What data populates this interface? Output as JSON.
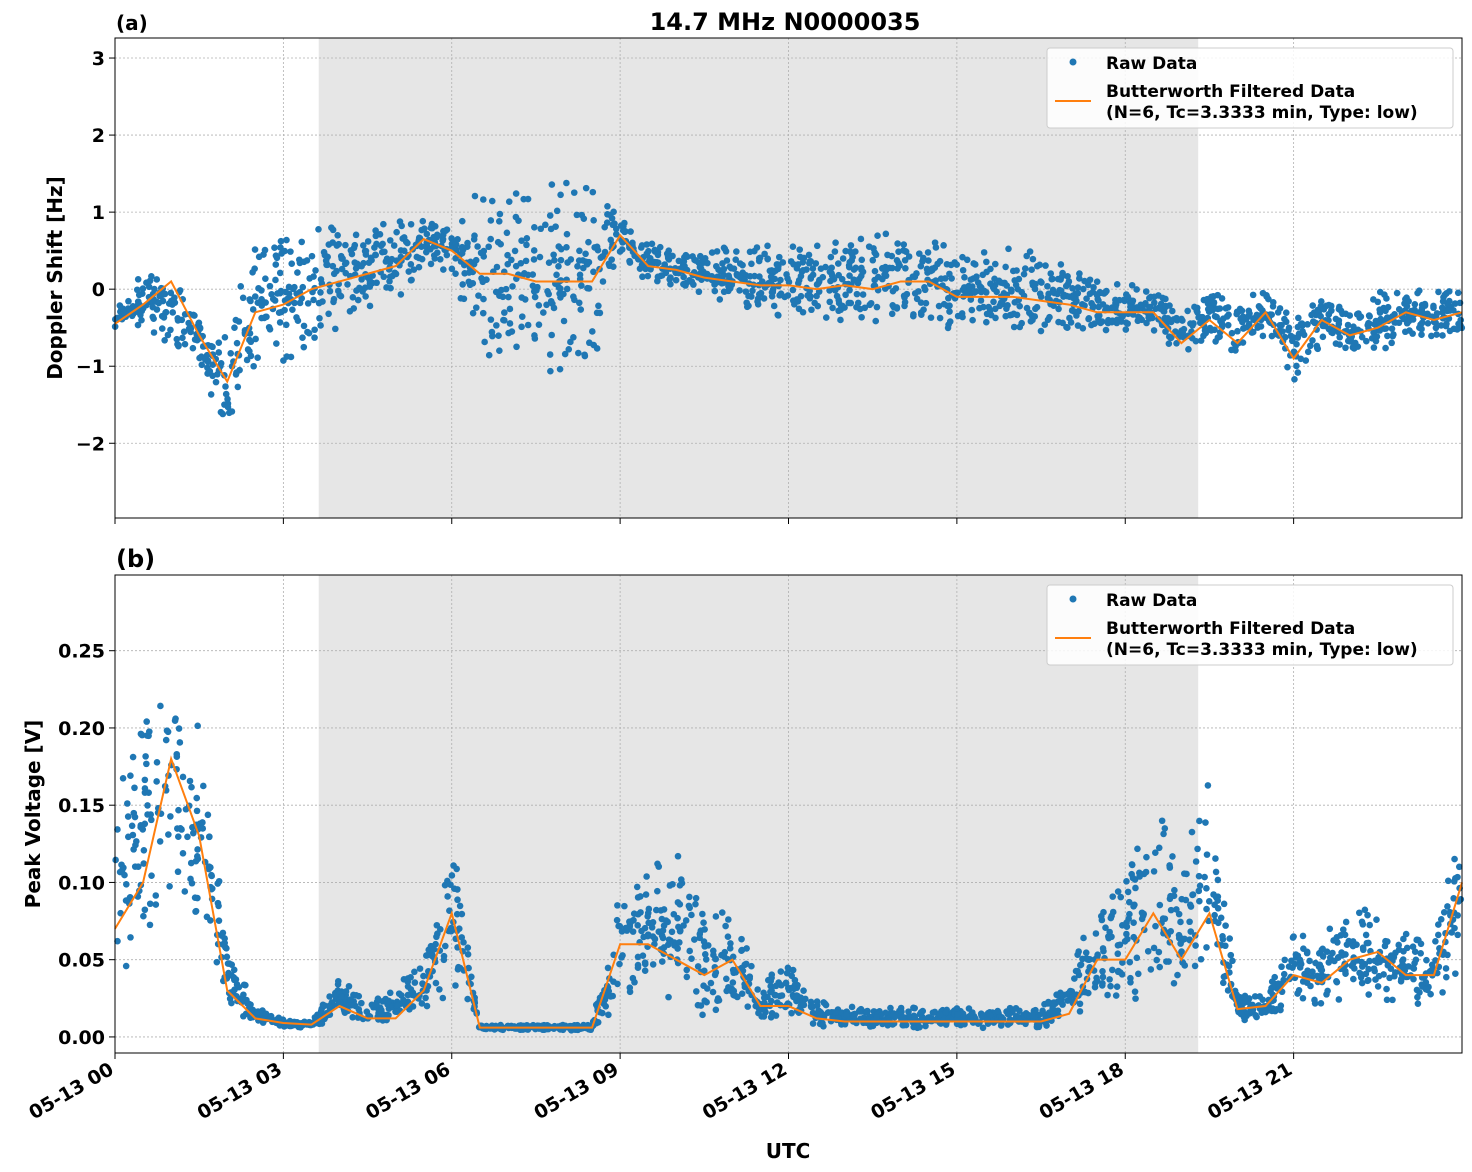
{
  "chart_data": [
    {
      "type": "scatter+line",
      "panel_label": "(a)",
      "title": "14.7 MHz N0000035",
      "xlabel": "",
      "ylabel": "Doppler Shift [Hz]",
      "xlim_hours_utc": [
        0,
        24
      ],
      "ylim": [
        -2.97,
        3.26
      ],
      "yticks": [
        -2,
        -1,
        0,
        1,
        2,
        3
      ],
      "ytick_labels": [
        "−2",
        "−1",
        "0",
        "1",
        "2",
        "3"
      ],
      "grid": true,
      "shaded_interval_hours_utc": [
        3.63,
        19.3
      ],
      "legend_placement": "top-right",
      "legend": [
        "Raw Data",
        "Butterworth Filtered Data\n(N=6, Tc=3.3333 min, Type: low)"
      ],
      "legend_line1": "Butterworth Filtered Data",
      "legend_line2": "(N=6, Tc=3.3333 min, Type: low)",
      "x_hours_utc": [
        0,
        0.5,
        1,
        1.5,
        2,
        2.5,
        3,
        3.5,
        4,
        4.5,
        5,
        5.5,
        6,
        6.5,
        7,
        7.5,
        8,
        8.5,
        9,
        9.5,
        10,
        10.5,
        11,
        11.5,
        12,
        12.5,
        13,
        13.5,
        14,
        14.5,
        15,
        15.5,
        16,
        16.5,
        17,
        17.5,
        18,
        18.5,
        19,
        19.5,
        20,
        20.5,
        21,
        21.5,
        22,
        22.5,
        23,
        23.5,
        24
      ],
      "series": [
        {
          "name": "Butterworth Filtered Data",
          "values": [
            -0.45,
            -0.2,
            0.1,
            -0.6,
            -1.2,
            -0.3,
            -0.2,
            0.0,
            0.1,
            0.2,
            0.3,
            0.65,
            0.5,
            0.2,
            0.2,
            0.1,
            0.1,
            0.1,
            0.7,
            0.3,
            0.25,
            0.15,
            0.1,
            0.05,
            0.05,
            0.0,
            0.05,
            0.0,
            0.1,
            0.1,
            -0.1,
            -0.1,
            -0.1,
            -0.15,
            -0.2,
            -0.3,
            -0.3,
            -0.3,
            -0.7,
            -0.4,
            -0.7,
            -0.3,
            -0.9,
            -0.4,
            -0.6,
            -0.5,
            -0.3,
            -0.4,
            -0.3
          ]
        },
        {
          "name": "Raw Data",
          "low": [
            -0.6,
            -0.6,
            -0.8,
            -1.0,
            -2.0,
            -1.1,
            -1.0,
            -0.9,
            -0.5,
            -0.3,
            -0.2,
            0.2,
            0.2,
            -1.0,
            -1.1,
            -1.1,
            -1.2,
            -1.1,
            0.3,
            0.1,
            -0.1,
            -0.1,
            -0.3,
            -0.4,
            -0.4,
            -0.5,
            -0.5,
            -0.5,
            -0.5,
            -0.5,
            -0.6,
            -0.6,
            -0.6,
            -0.6,
            -0.6,
            -0.6,
            -0.6,
            -0.6,
            -0.9,
            -0.7,
            -1.0,
            -0.6,
            -1.3,
            -0.8,
            -0.9,
            -0.9,
            -0.7,
            -0.7,
            -0.6
          ],
          "high": [
            -0.2,
            0.3,
            0.4,
            -0.3,
            -0.6,
            0.8,
            0.9,
            1.0,
            0.9,
            0.9,
            1.0,
            1.0,
            0.9,
            1.4,
            1.5,
            1.5,
            1.6,
            1.6,
            1.0,
            0.6,
            0.6,
            0.5,
            0.6,
            0.6,
            0.7,
            0.7,
            0.7,
            0.8,
            0.8,
            0.7,
            0.6,
            0.6,
            0.6,
            0.5,
            0.4,
            0.2,
            0.1,
            0.1,
            -0.2,
            0.1,
            -0.2,
            0.1,
            -0.2,
            0.0,
            -0.2,
            0.0,
            0.1,
            0.0,
            0.0
          ]
        }
      ]
    },
    {
      "type": "scatter+line",
      "panel_label": "(b)",
      "title": "",
      "xlabel": "UTC",
      "ylabel": "Peak Voltage [V]",
      "xlim_hours_utc": [
        0,
        24
      ],
      "ylim": [
        -0.0104,
        0.299
      ],
      "yticks": [
        0,
        0.05,
        0.1,
        0.15,
        0.2,
        0.25
      ],
      "ytick_labels": [
        "0.00",
        "0.05",
        "0.10",
        "0.15",
        "0.20",
        "0.25"
      ],
      "xtick_labels": [
        "05-13 00",
        "05-13 03",
        "05-13 06",
        "05-13 09",
        "05-13 12",
        "05-13 15",
        "05-13 18",
        "05-13 21"
      ],
      "xticks_hours_utc": [
        0,
        3,
        6,
        9,
        12,
        15,
        18,
        21
      ],
      "grid": true,
      "shaded_interval_hours_utc": [
        3.63,
        19.3
      ],
      "legend_placement": "top-right",
      "legend_line1": "Butterworth Filtered Data",
      "legend_line2": "(N=6, Tc=3.3333 min, Type: low)",
      "x_hours_utc": [
        0,
        0.5,
        1,
        1.5,
        2,
        2.5,
        3,
        3.5,
        4,
        4.5,
        5,
        5.5,
        6,
        6.5,
        7,
        7.5,
        8,
        8.5,
        9,
        9.5,
        10,
        10.5,
        11,
        11.5,
        12,
        12.5,
        13,
        13.5,
        14,
        14.5,
        15,
        15.5,
        16,
        16.5,
        17,
        17.5,
        18,
        18.5,
        19,
        19.5,
        20,
        20.5,
        21,
        21.5,
        22,
        22.5,
        23,
        23.5,
        24
      ],
      "series": [
        {
          "name": "Butterworth Filtered Data",
          "values": [
            0.07,
            0.1,
            0.18,
            0.13,
            0.03,
            0.012,
            0.009,
            0.008,
            0.02,
            0.012,
            0.012,
            0.03,
            0.08,
            0.006,
            0.006,
            0.006,
            0.006,
            0.006,
            0.06,
            0.06,
            0.05,
            0.04,
            0.05,
            0.02,
            0.02,
            0.012,
            0.01,
            0.01,
            0.01,
            0.01,
            0.01,
            0.01,
            0.01,
            0.01,
            0.015,
            0.05,
            0.05,
            0.08,
            0.05,
            0.08,
            0.018,
            0.02,
            0.04,
            0.035,
            0.05,
            0.055,
            0.04,
            0.04,
            0.1
          ]
        },
        {
          "name": "Raw Data",
          "low": [
            0.03,
            0.05,
            0.08,
            0.07,
            0.02,
            0.008,
            0.006,
            0.006,
            0.01,
            0.008,
            0.008,
            0.01,
            0.03,
            0.004,
            0.004,
            0.004,
            0.004,
            0.004,
            0.02,
            0.02,
            0.015,
            0.012,
            0.012,
            0.008,
            0.008,
            0.006,
            0.005,
            0.005,
            0.005,
            0.005,
            0.005,
            0.005,
            0.005,
            0.005,
            0.008,
            0.015,
            0.015,
            0.02,
            0.015,
            0.02,
            0.01,
            0.01,
            0.015,
            0.015,
            0.02,
            0.02,
            0.02,
            0.02,
            0.04
          ],
          "high": [
            0.15,
            0.22,
            0.25,
            0.22,
            0.06,
            0.02,
            0.012,
            0.011,
            0.04,
            0.025,
            0.03,
            0.06,
            0.14,
            0.008,
            0.008,
            0.008,
            0.008,
            0.008,
            0.1,
            0.12,
            0.12,
            0.09,
            0.09,
            0.04,
            0.05,
            0.025,
            0.02,
            0.02,
            0.02,
            0.02,
            0.02,
            0.02,
            0.02,
            0.02,
            0.04,
            0.1,
            0.12,
            0.16,
            0.12,
            0.18,
            0.03,
            0.03,
            0.07,
            0.07,
            0.09,
            0.09,
            0.07,
            0.07,
            0.16
          ]
        }
      ]
    }
  ],
  "colors": {
    "raw": "#1f77b4",
    "filtered": "#ff7f0e",
    "shade": "#e6e6e6"
  }
}
